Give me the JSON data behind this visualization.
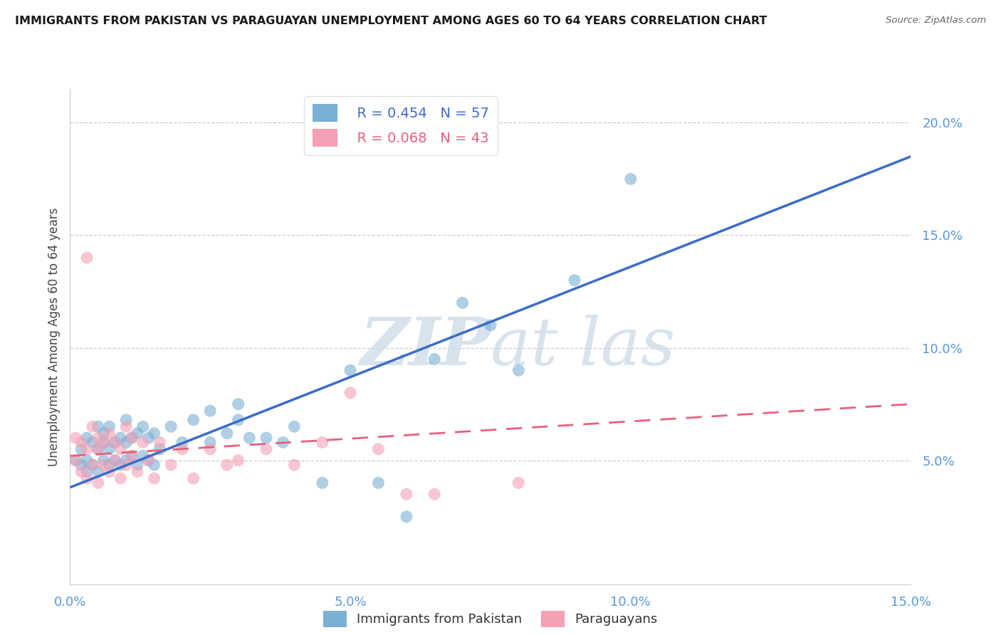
{
  "title": "IMMIGRANTS FROM PAKISTAN VS PARAGUAYAN UNEMPLOYMENT AMONG AGES 60 TO 64 YEARS CORRELATION CHART",
  "source": "Source: ZipAtlas.com",
  "ylabel": "Unemployment Among Ages 60 to 64 years",
  "xlim": [
    0.0,
    0.15
  ],
  "ylim": [
    -0.005,
    0.215
  ],
  "yticks": [
    0.05,
    0.1,
    0.15,
    0.2
  ],
  "ytick_labels": [
    "5.0%",
    "10.0%",
    "15.0%",
    "20.0%"
  ],
  "xticks": [
    0.0,
    0.05,
    0.1,
    0.15
  ],
  "xtick_labels": [
    "0.0%",
    "5.0%",
    "10.0%",
    "15.0%"
  ],
  "blue_label": "Immigrants from Pakistan",
  "pink_label": "Paraguayans",
  "blue_R": "R = 0.454",
  "blue_N": "N = 57",
  "pink_R": "R = 0.068",
  "pink_N": "N = 43",
  "blue_color": "#7BAFD4",
  "pink_color": "#F4A0B5",
  "blue_line_color": "#3B6CC8",
  "pink_line_color": "#E8607A",
  "watermark_color": "#C8D8E8",
  "blue_line_x0": 0.0,
  "blue_line_y0": 0.038,
  "blue_line_x1": 0.15,
  "blue_line_y1": 0.185,
  "pink_line_x0": 0.0,
  "pink_line_y0": 0.052,
  "pink_line_x1": 0.15,
  "pink_line_y1": 0.075,
  "blue_x": [
    0.001,
    0.002,
    0.002,
    0.003,
    0.003,
    0.003,
    0.004,
    0.004,
    0.005,
    0.005,
    0.005,
    0.006,
    0.006,
    0.006,
    0.007,
    0.007,
    0.007,
    0.008,
    0.008,
    0.009,
    0.009,
    0.01,
    0.01,
    0.01,
    0.011,
    0.011,
    0.012,
    0.012,
    0.013,
    0.013,
    0.014,
    0.014,
    0.015,
    0.015,
    0.016,
    0.018,
    0.02,
    0.022,
    0.025,
    0.025,
    0.028,
    0.03,
    0.03,
    0.032,
    0.035,
    0.038,
    0.04,
    0.045,
    0.05,
    0.055,
    0.06,
    0.065,
    0.07,
    0.075,
    0.08,
    0.09,
    0.1
  ],
  "blue_y": [
    0.05,
    0.048,
    0.055,
    0.045,
    0.05,
    0.06,
    0.048,
    0.058,
    0.045,
    0.055,
    0.065,
    0.05,
    0.058,
    0.062,
    0.048,
    0.055,
    0.065,
    0.05,
    0.058,
    0.048,
    0.06,
    0.05,
    0.058,
    0.068,
    0.052,
    0.06,
    0.048,
    0.062,
    0.052,
    0.065,
    0.05,
    0.06,
    0.048,
    0.062,
    0.055,
    0.065,
    0.058,
    0.068,
    0.058,
    0.072,
    0.062,
    0.068,
    0.075,
    0.06,
    0.06,
    0.058,
    0.065,
    0.04,
    0.09,
    0.04,
    0.025,
    0.095,
    0.12,
    0.11,
    0.09,
    0.13,
    0.175
  ],
  "pink_x": [
    0.001,
    0.001,
    0.002,
    0.002,
    0.003,
    0.003,
    0.004,
    0.004,
    0.005,
    0.005,
    0.005,
    0.006,
    0.006,
    0.007,
    0.007,
    0.008,
    0.008,
    0.009,
    0.009,
    0.01,
    0.01,
    0.011,
    0.011,
    0.012,
    0.013,
    0.014,
    0.015,
    0.016,
    0.018,
    0.02,
    0.022,
    0.025,
    0.028,
    0.03,
    0.035,
    0.04,
    0.045,
    0.05,
    0.055,
    0.06,
    0.003,
    0.065,
    0.08
  ],
  "pink_y": [
    0.05,
    0.06,
    0.045,
    0.058,
    0.042,
    0.055,
    0.048,
    0.065,
    0.04,
    0.055,
    0.06,
    0.048,
    0.058,
    0.045,
    0.062,
    0.05,
    0.058,
    0.042,
    0.055,
    0.048,
    0.065,
    0.052,
    0.06,
    0.045,
    0.058,
    0.05,
    0.042,
    0.058,
    0.048,
    0.055,
    0.042,
    0.055,
    0.048,
    0.05,
    0.055,
    0.048,
    0.058,
    0.08,
    0.055,
    0.035,
    0.14,
    0.035,
    0.04
  ]
}
